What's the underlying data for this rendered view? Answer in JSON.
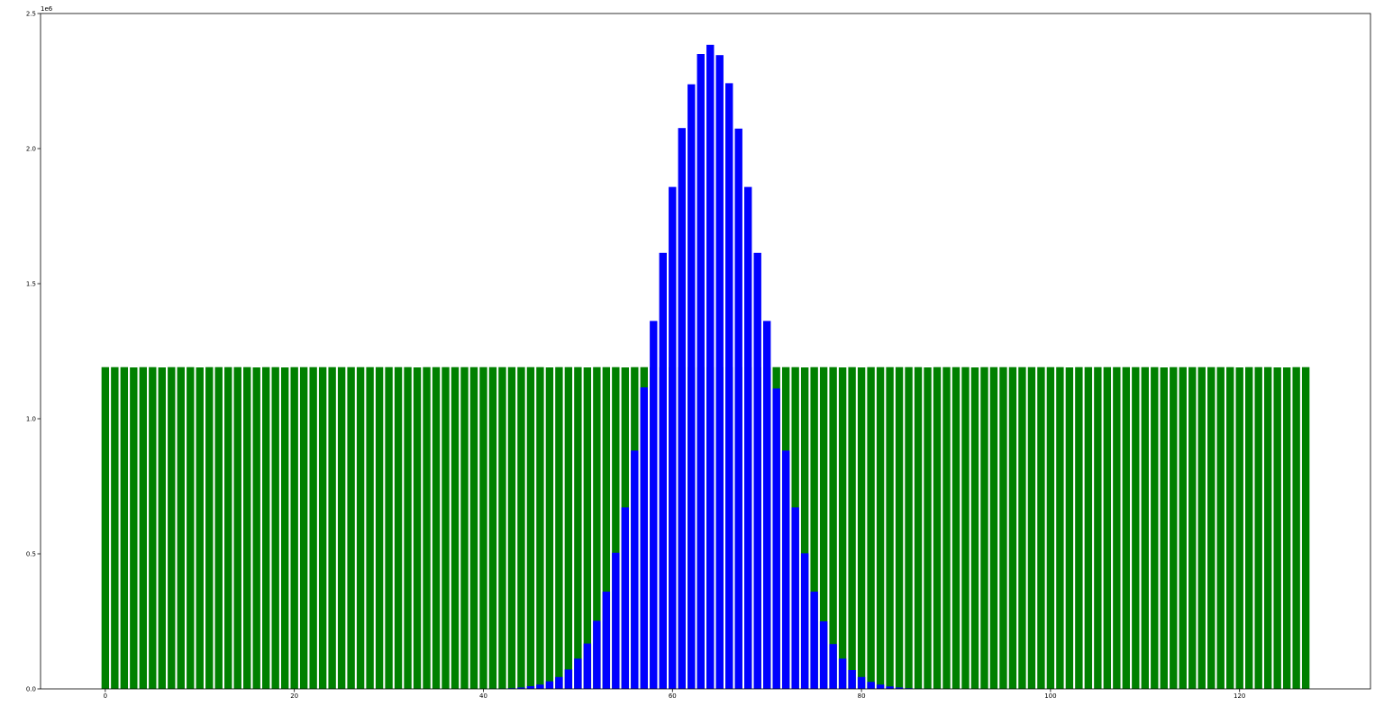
{
  "chart_data": {
    "type": "bar",
    "title": "",
    "xlabel": "",
    "ylabel": "",
    "y_offset_label": "1e6",
    "xlim": [
      -6.85,
      133.85
    ],
    "ylim": [
      0,
      2500000
    ],
    "grid": false,
    "legend": "none",
    "x_ticks": [
      {
        "value": 0,
        "label": "0"
      },
      {
        "value": 20,
        "label": "20"
      },
      {
        "value": 40,
        "label": "40"
      },
      {
        "value": 60,
        "label": "60"
      },
      {
        "value": 80,
        "label": "80"
      },
      {
        "value": 100,
        "label": "100"
      },
      {
        "value": 120,
        "label": "120"
      }
    ],
    "y_ticks": [
      {
        "value": 0,
        "label": "0.0"
      },
      {
        "value": 500000,
        "label": "0.5"
      },
      {
        "value": 1000000,
        "label": "1.0"
      },
      {
        "value": 1500000,
        "label": "1.5"
      },
      {
        "value": 2000000,
        "label": "2.0"
      },
      {
        "value": 2500000,
        "label": "2.5"
      }
    ],
    "series": [
      {
        "color": "#008000",
        "x_start": 0,
        "count": 128,
        "values": [
          1191000,
          1191000,
          1191000,
          1190000,
          1191000,
          1191000,
          1190000,
          1191000,
          1191000,
          1191000,
          1190000,
          1191000,
          1191000,
          1191000,
          1191000,
          1191000,
          1190000,
          1191000,
          1191000,
          1190000,
          1191000,
          1191000,
          1191000,
          1191000,
          1191000,
          1191000,
          1191000,
          1191000,
          1191000,
          1191000,
          1191000,
          1191000,
          1191000,
          1190000,
          1191000,
          1191000,
          1191000,
          1191000,
          1191000,
          1191000,
          1191000,
          1191000,
          1191000,
          1191000,
          1191000,
          1191000,
          1191000,
          1190000,
          1191000,
          1191000,
          1191000,
          1190000,
          1191000,
          1191000,
          1191000,
          1190000,
          1191000,
          1191000,
          1191000,
          1191000,
          1191000,
          1191000,
          1191000,
          1191000,
          1191000,
          1191000,
          1191000,
          1191000,
          1191000,
          1191000,
          1191000,
          1191000,
          1191000,
          1191000,
          1190000,
          1191000,
          1191000,
          1191000,
          1190000,
          1191000,
          1190000,
          1191000,
          1191000,
          1191000,
          1191000,
          1191000,
          1191000,
          1190000,
          1191000,
          1191000,
          1191000,
          1191000,
          1190000,
          1191000,
          1191000,
          1191000,
          1191000,
          1191000,
          1191000,
          1191000,
          1191000,
          1191000,
          1190000,
          1191000,
          1191000,
          1191000,
          1191000,
          1191000,
          1191000,
          1191000,
          1191000,
          1191000,
          1190000,
          1191000,
          1191000,
          1191000,
          1191000,
          1191000,
          1191000,
          1191000,
          1190000,
          1191000,
          1191000,
          1191000,
          1190000,
          1190000,
          1191000,
          1191000
        ]
      },
      {
        "color": "#0000ff",
        "x_start": 0,
        "count": 128,
        "values": [
          0,
          0,
          0,
          0,
          0,
          0,
          0,
          0,
          0,
          0,
          0,
          0,
          0,
          0,
          0,
          0,
          0,
          0,
          0,
          0,
          0,
          0,
          0,
          0,
          0,
          0,
          0,
          0,
          0,
          0,
          0,
          0,
          0,
          0,
          0,
          0,
          0,
          0,
          0,
          0,
          200,
          500,
          1000,
          2500,
          5000,
          10000,
          16000,
          28000,
          44000,
          72000,
          112000,
          168000,
          252000,
          360000,
          504000,
          672000,
          882000,
          1116000,
          1362000,
          1614000,
          1858000,
          2076000,
          2238000,
          2350000,
          2384000,
          2346000,
          2242000,
          2074000,
          1858000,
          1614000,
          1362000,
          1112000,
          882000,
          672000,
          502000,
          360000,
          250000,
          166000,
          112000,
          70000,
          44000,
          26000,
          16000,
          9000,
          5000,
          2500,
          1000,
          500,
          200,
          0,
          0,
          0,
          0,
          0,
          0,
          0,
          0,
          0,
          0,
          0,
          0,
          0,
          0,
          0,
          0,
          0,
          0,
          0,
          0,
          0,
          0,
          0,
          0,
          0,
          0,
          0,
          0,
          0,
          0,
          0,
          0,
          0,
          0,
          0,
          0,
          0,
          0,
          0
        ]
      }
    ]
  }
}
